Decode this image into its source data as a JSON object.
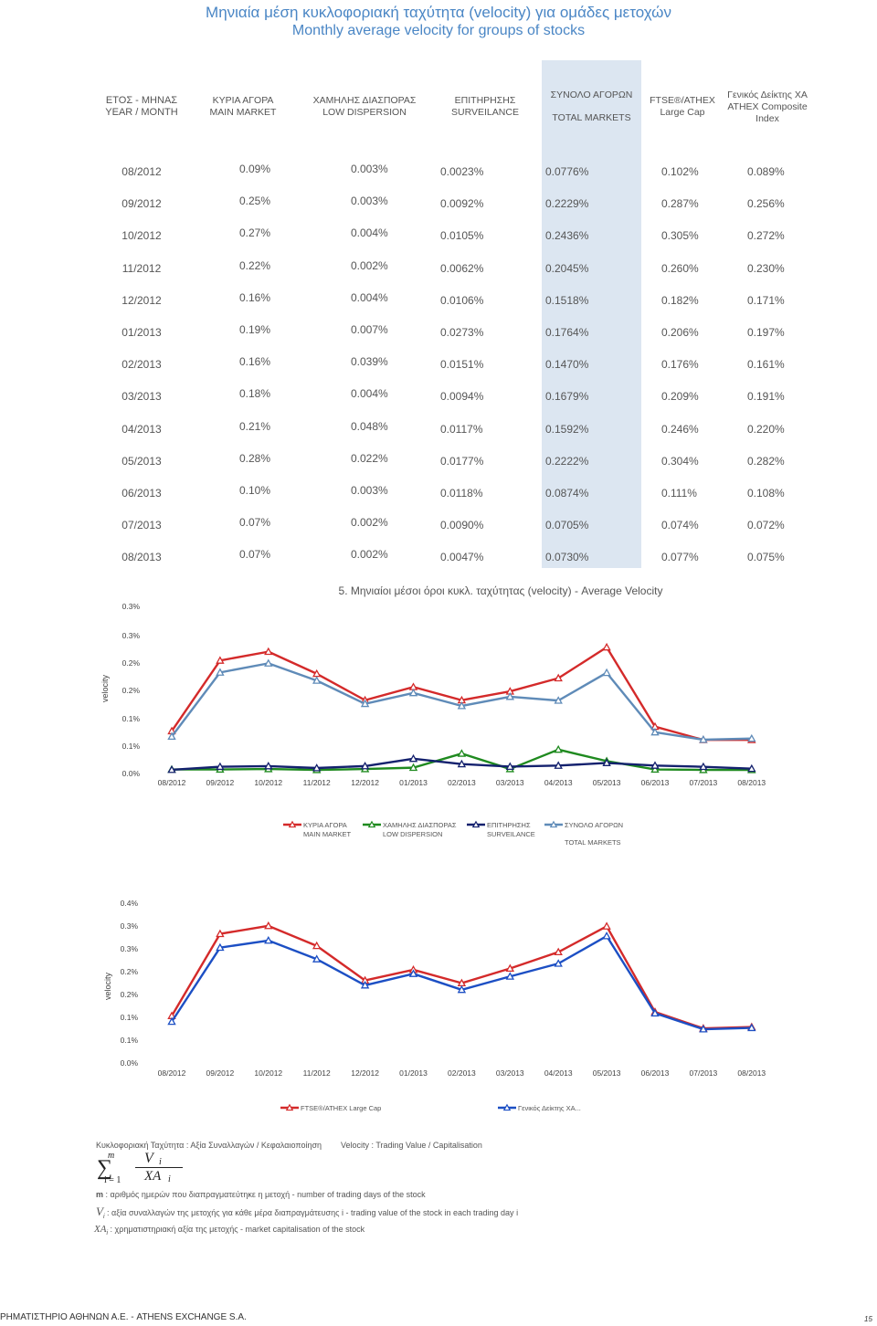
{
  "header": {
    "title_gr": "Μηνιαία μέση κυκλοφοριακή ταχύτητα (velocity) για ομάδες μετοχών",
    "title_en": "Monthly average velocity for groups of stocks"
  },
  "table": {
    "columns": [
      {
        "gr": "ΕΤΟΣ - ΜΗΝΑΣ",
        "en": "YEAR / MONTH"
      },
      {
        "gr": "ΚΥΡΙΑ ΑΓΟΡΑ",
        "en": "MAIN MARKET"
      },
      {
        "gr": "ΧΑΜΗΛΗΣ ΔΙΑΣΠΟΡΑΣ",
        "en": "LOW DISPERSION"
      },
      {
        "gr": "ΕΠΙΤΗΡΗΣΗΣ",
        "en": "SURVEILANCE"
      },
      {
        "gr": "ΣΥΝΟΛΟ ΑΓΟΡΩΝ",
        "en": "TOTAL MARKETS"
      },
      {
        "gr": "FTSE®/ATHEX",
        "en": "Large Cap"
      },
      {
        "gr": "Γενικός Δείκτης ΧΑ",
        "en": "ATHEX Composite",
        "en2": "Index"
      }
    ],
    "rows": [
      [
        "08/2012",
        "0.09%",
        "0.003%",
        "0.0023%",
        "0.0776%",
        "0.102%",
        "0.089%"
      ],
      [
        "09/2012",
        "0.25%",
        "0.003%",
        "0.0092%",
        "0.2229%",
        "0.287%",
        "0.256%"
      ],
      [
        "10/2012",
        "0.27%",
        "0.004%",
        "0.0105%",
        "0.2436%",
        "0.305%",
        "0.272%"
      ],
      [
        "11/2012",
        "0.22%",
        "0.002%",
        "0.0062%",
        "0.2045%",
        "0.260%",
        "0.230%"
      ],
      [
        "12/2012",
        "0.16%",
        "0.004%",
        "0.0106%",
        "0.1518%",
        "0.182%",
        "0.171%"
      ],
      [
        "01/2013",
        "0.19%",
        "0.007%",
        "0.0273%",
        "0.1764%",
        "0.206%",
        "0.197%"
      ],
      [
        "02/2013",
        "0.16%",
        "0.039%",
        "0.0151%",
        "0.1470%",
        "0.176%",
        "0.161%"
      ],
      [
        "03/2013",
        "0.18%",
        "0.004%",
        "0.0094%",
        "0.1679%",
        "0.209%",
        "0.191%"
      ],
      [
        "04/2013",
        "0.21%",
        "0.048%",
        "0.0117%",
        "0.1592%",
        "0.246%",
        "0.220%"
      ],
      [
        "05/2013",
        "0.28%",
        "0.022%",
        "0.0177%",
        "0.2222%",
        "0.304%",
        "0.282%"
      ],
      [
        "06/2013",
        "0.10%",
        "0.003%",
        "0.0118%",
        "0.0874%",
        "0.111%",
        "0.108%"
      ],
      [
        "07/2013",
        "0.07%",
        "0.002%",
        "0.0090%",
        "0.0705%",
        "0.074%",
        "0.072%"
      ],
      [
        "08/2013",
        "0.07%",
        "0.002%",
        "0.0047%",
        "0.0730%",
        "0.077%",
        "0.075%"
      ]
    ]
  },
  "chart_data": [
    {
      "type": "line",
      "title": "5. Μηνιαίοι μέσοι όροι κυκλ. ταχύτητας (velocity) - Average Velocity",
      "ylabel": "velocity",
      "ylim": [
        0,
        0.35
      ],
      "ytick_labels": [
        "0.0%",
        "0.1%",
        "0.1%",
        "0.2%",
        "0.2%",
        "0.3%",
        "0.3%"
      ],
      "categories": [
        "08/2012",
        "09/2012",
        "10/2012",
        "11/2012",
        "12/2012",
        "01/2013",
        "02/2013",
        "03/2013",
        "04/2013",
        "05/2013",
        "06/2013",
        "07/2013",
        "08/2013"
      ],
      "series": [
        {
          "name": "ΚΥΡΙΑ ΑΓΟΡΑ",
          "name2": "MAIN MARKET",
          "color": "#d42a2a",
          "marker": "triangle",
          "values": [
            0.09,
            0.25,
            0.27,
            0.22,
            0.16,
            0.19,
            0.16,
            0.18,
            0.21,
            0.28,
            0.1,
            0.07,
            0.07
          ]
        },
        {
          "name": "ΧΑΜΗΛΗΣ ΔΙΑΣΠΟΡΑΣ",
          "name2": "LOW DISPERSION",
          "color": "#1f8a1f",
          "marker": "triangle",
          "values": [
            0.003,
            0.003,
            0.004,
            0.002,
            0.004,
            0.007,
            0.039,
            0.004,
            0.048,
            0.022,
            0.003,
            0.002,
            0.002
          ]
        },
        {
          "name": "ΕΠΙΤΗΡΗΣΗΣ",
          "name2": "SURVEILANCE",
          "color": "#14216e",
          "marker": "triangle",
          "values": [
            0.0023,
            0.0092,
            0.0105,
            0.0062,
            0.0106,
            0.0273,
            0.0151,
            0.0094,
            0.0117,
            0.0177,
            0.0118,
            0.009,
            0.0047
          ]
        },
        {
          "name": "ΣΥΝΟΛΟ ΑΓΟΡΩΝ",
          "name2": "TOTAL MARKETS",
          "color": "#5f8bb8",
          "marker": "triangle",
          "values": [
            0.0776,
            0.2229,
            0.2436,
            0.2045,
            0.1518,
            0.1764,
            0.147,
            0.1679,
            0.1592,
            0.2222,
            0.0874,
            0.0705,
            0.073
          ]
        }
      ]
    },
    {
      "type": "line",
      "title": "",
      "ylabel": "velocity",
      "ylim": [
        0,
        0.35
      ],
      "ytick_labels": [
        "0.0%",
        "0.1%",
        "0.1%",
        "0.2%",
        "0.2%",
        "0.3%",
        "0.3%",
        "0.4%"
      ],
      "categories": [
        "08/2012",
        "09/2012",
        "10/2012",
        "11/2012",
        "12/2012",
        "01/2013",
        "02/2013",
        "03/2013",
        "04/2013",
        "05/2013",
        "06/2013",
        "07/2013",
        "08/2013"
      ],
      "series": [
        {
          "name": "FTSE®/ATHEX Large Cap",
          "color": "#d42a2a",
          "marker": "triangle",
          "values": [
            0.102,
            0.287,
            0.305,
            0.26,
            0.182,
            0.206,
            0.176,
            0.209,
            0.246,
            0.304,
            0.111,
            0.074,
            0.077
          ]
        },
        {
          "name": "Γενικός Δείκτης ΧΑ...",
          "color": "#1c4fc4",
          "marker": "triangle",
          "values": [
            0.089,
            0.256,
            0.272,
            0.23,
            0.171,
            0.197,
            0.161,
            0.191,
            0.22,
            0.282,
            0.108,
            0.072,
            0.075
          ]
        }
      ]
    }
  ],
  "notes": {
    "line1_gr": "Κυκλοφοριακή Ταχύτητα : Αξία Συναλλαγών / Κεφαλαιοποίηση",
    "line1_en": "Velocity : Trading Value / Capitalisation",
    "formula": {
      "sum": "∑",
      "upper": "m",
      "lower": "i = 1",
      "numerator": "V",
      "denominator": "XA",
      "index": "i"
    },
    "m_symbol": "m",
    "m_desc": ": αριθμός ημερών που διαπραγματεύτηκε η μετοχή - number of trading days of the stock",
    "v_symbol": "V",
    "v_sub": "i",
    "v_desc": ": αξία συναλλαγών της μετοχής για κάθε μέρα διαπραγμάτευσης i - trading value of the stock in each trading day i",
    "xa_symbol": "XA",
    "xa_sub": "i",
    "xa_desc": ": χρηματιστηριακή αξία της μετοχής - market capitalisation of the stock"
  },
  "footer": {
    "company": "ΡΗΜΑΤΙΣΤΗΡΙΟ ΑΘΗΝΩΝ Α.Ε. - ATHENS EXCHANGE S.A.",
    "page": "15"
  }
}
